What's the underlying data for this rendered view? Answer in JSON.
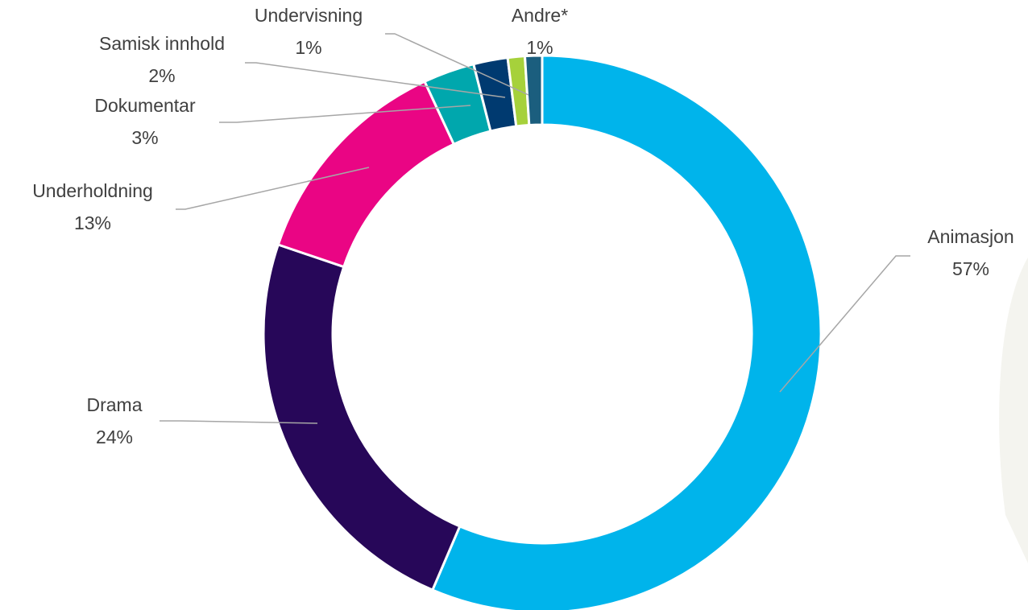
{
  "chart_data": {
    "type": "pie",
    "variant": "donut",
    "title": "",
    "slices": [
      {
        "label": "Animasjon",
        "value": 57,
        "value_label": "57%",
        "color": "#00b4eb"
      },
      {
        "label": "Drama",
        "value": 24,
        "value_label": "24%",
        "color": "#270759"
      },
      {
        "label": "Underholdning",
        "value": 13,
        "value_label": "13%",
        "color": "#ea0584"
      },
      {
        "label": "Dokumentar",
        "value": 3,
        "value_label": "3%",
        "color": "#00a7ad"
      },
      {
        "label": "Samisk innhold",
        "value": 2,
        "value_label": "2%",
        "color": "#003a70"
      },
      {
        "label": "Undervisning",
        "value": 1,
        "value_label": "1%",
        "color": "#a6d13b"
      },
      {
        "label": "Andre*",
        "value": 1,
        "value_label": "1%",
        "color": "#1b5e7e"
      }
    ],
    "legend": "none",
    "data_labels": "outside-with-leader-lines"
  }
}
